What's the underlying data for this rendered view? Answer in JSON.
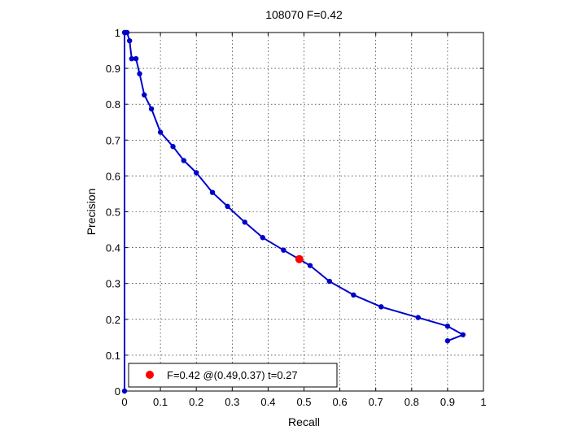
{
  "chart_data": {
    "type": "line",
    "title": "108070 F=0.42",
    "xlabel": "Recall",
    "ylabel": "Precision",
    "xlim": [
      0,
      1
    ],
    "ylim": [
      0,
      1
    ],
    "xticks": [
      "0",
      "0.1",
      "0.2",
      "0.3",
      "0.4",
      "0.5",
      "0.6",
      "0.7",
      "0.8",
      "0.9",
      "1"
    ],
    "yticks": [
      "0",
      "0.1",
      "0.2",
      "0.3",
      "0.4",
      "0.5",
      "0.6",
      "0.7",
      "0.8",
      "0.9",
      "1"
    ],
    "grid": true,
    "legend_position": "bottom-left",
    "series": [
      {
        "color": "#0000cc",
        "x": [
          0.0,
          0.0,
          0.003,
          0.007,
          0.014,
          0.02,
          0.032,
          0.042,
          0.055,
          0.075,
          0.1,
          0.135,
          0.165,
          0.2,
          0.245,
          0.287,
          0.335,
          0.385,
          0.443,
          0.517,
          0.571,
          0.638,
          0.715,
          0.818,
          0.9,
          0.943,
          0.9
        ],
        "y": [
          0.0,
          1.0,
          1.0,
          1.0,
          0.977,
          0.927,
          0.927,
          0.885,
          0.826,
          0.787,
          0.722,
          0.682,
          0.643,
          0.609,
          0.554,
          0.515,
          0.471,
          0.428,
          0.393,
          0.35,
          0.306,
          0.268,
          0.235,
          0.205,
          0.181,
          0.157,
          0.14
        ]
      }
    ],
    "best_point": {
      "x": 0.487,
      "y": 0.368,
      "color": "#ff0000",
      "legend": "F=0.42 @(0.49,0.37) t=0.27"
    }
  }
}
